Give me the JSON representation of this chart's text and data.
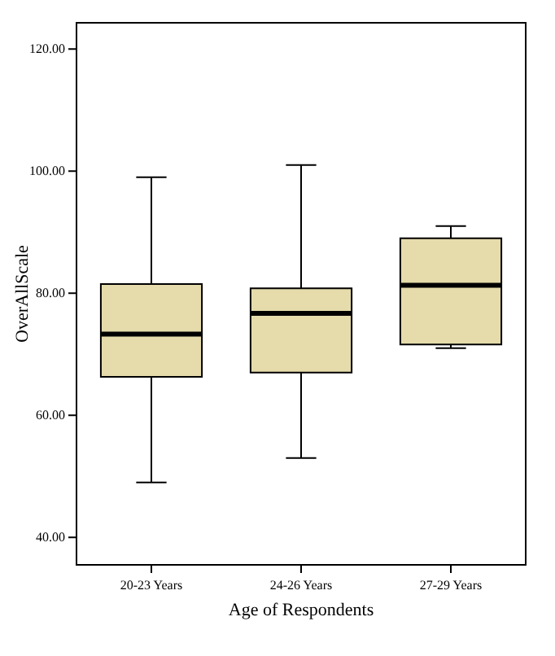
{
  "chart_data": {
    "type": "box",
    "xlabel": "Age of Respondents",
    "ylabel": "OverAllScale",
    "categories": [
      "20-23 Years",
      "24-26 Years",
      "27-29 Years"
    ],
    "color": "#e5dbab",
    "boxes": [
      {
        "low": 49,
        "q1": 66.3,
        "median": 73.3,
        "q3": 81.5,
        "high": 99
      },
      {
        "low": 53,
        "q1": 67,
        "median": 76.7,
        "q3": 80.8,
        "high": 101
      },
      {
        "low": 71,
        "q1": 71.6,
        "median": 81.3,
        "q3": 89,
        "high": 91
      }
    ],
    "ylim": [
      35.5,
      124.3
    ],
    "yticks": [
      {
        "value": 40,
        "label": "40.00"
      },
      {
        "value": 60,
        "label": "60.00"
      },
      {
        "value": 80,
        "label": "80.00"
      },
      {
        "value": 100,
        "label": "100.00"
      },
      {
        "value": 120,
        "label": "120.00"
      }
    ],
    "grid": false
  }
}
